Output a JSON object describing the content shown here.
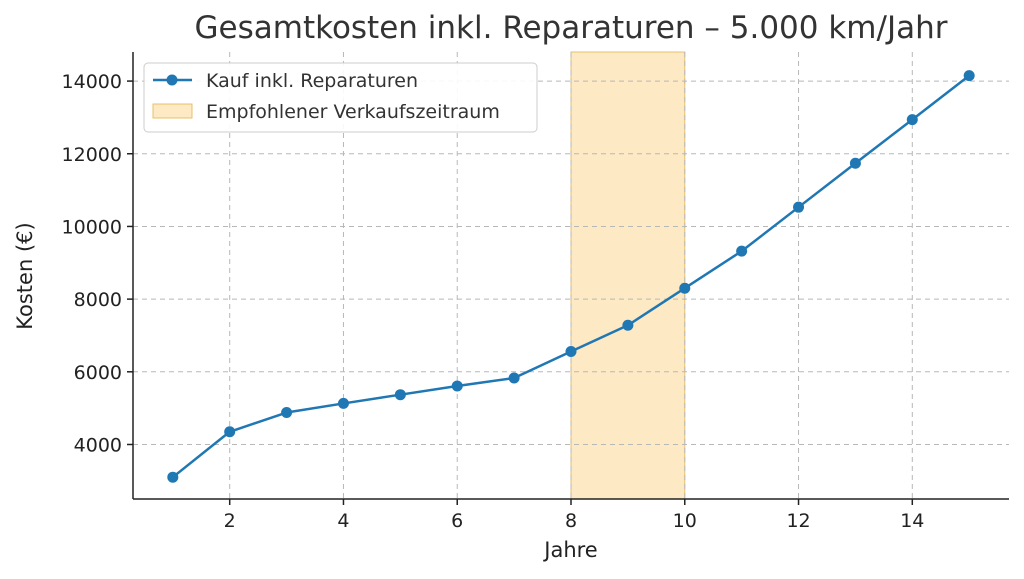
{
  "chart_data": {
    "type": "line",
    "title": "Gesamtkosten inkl. Reparaturen – 5.000 km/Jahr",
    "xlabel": "Jahre",
    "ylabel": "Kosten (€)",
    "xlim": [
      0.3,
      15.7
    ],
    "ylim": [
      2500,
      14800
    ],
    "xticks": [
      2,
      4,
      6,
      8,
      10,
      12,
      14
    ],
    "yticks": [
      4000,
      6000,
      8000,
      10000,
      12000,
      14000
    ],
    "grid": true,
    "legend_position": "top-left",
    "series": [
      {
        "name": "Kauf inkl. Reparaturen",
        "color": "#1f77b4",
        "x": [
          1,
          2,
          3,
          4,
          5,
          6,
          7,
          8,
          9,
          10,
          11,
          12,
          13,
          14,
          15
        ],
        "y": [
          3100,
          4350,
          4880,
          5130,
          5370,
          5610,
          5830,
          6560,
          7280,
          8300,
          9320,
          10530,
          11740,
          12940,
          14150
        ]
      }
    ],
    "shaded_region": {
      "name": "Empfohlener Verkaufszeitraum",
      "x": [
        8,
        10
      ],
      "color": "#fde9c3",
      "edge_color": "#e8c06a"
    }
  }
}
